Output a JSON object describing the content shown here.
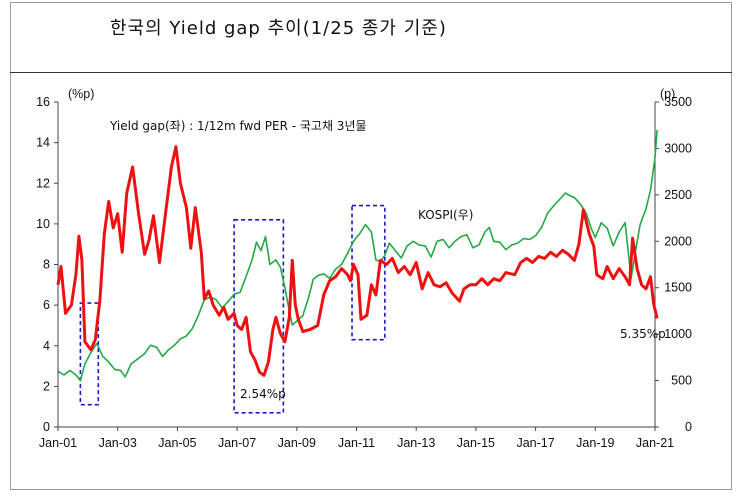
{
  "title": "한국의 Yield gap 추이(1/25 종가 기준)",
  "chart_data": {
    "type": "line",
    "left_axis_unit": "(%p)",
    "right_axis_unit": "(p)",
    "annotation_series_label": "Yield gap(좌) : 1/12m fwd PER - 국고채 3년물",
    "kospi_label": "KOSPI(우)",
    "label_low": "2.54%p",
    "label_last": "5.35%p",
    "ylim_left": [
      0,
      16
    ],
    "ylim_right": [
      0,
      3500
    ],
    "y_ticks_left": [
      "0",
      "2",
      "4",
      "6",
      "8",
      "10",
      "12",
      "14",
      "16"
    ],
    "y_ticks_right": [
      "0",
      "500",
      "1000",
      "1500",
      "2000",
      "2500",
      "3000",
      "3500"
    ],
    "x_ticks": [
      "Jan-01",
      "Jan-03",
      "Jan-05",
      "Jan-07",
      "Jan-09",
      "Jan-11",
      "Jan-13",
      "Jan-15",
      "Jan-17",
      "Jan-19",
      "Jan-21"
    ],
    "colors": {
      "yield_gap": "#ee1111",
      "kospi": "#22aa44",
      "box": "#1a1acc"
    },
    "series": [
      {
        "key": "yield_gap",
        "axis": "left",
        "points": [
          [
            2001.0,
            7.0
          ],
          [
            2001.1,
            7.9
          ],
          [
            2001.25,
            5.6
          ],
          [
            2001.45,
            6.0
          ],
          [
            2001.6,
            7.5
          ],
          [
            2001.7,
            9.4
          ],
          [
            2001.8,
            8.2
          ],
          [
            2001.9,
            4.2
          ],
          [
            2002.1,
            3.8
          ],
          [
            2002.25,
            4.3
          ],
          [
            2002.4,
            6.2
          ],
          [
            2002.55,
            9.5
          ],
          [
            2002.7,
            11.1
          ],
          [
            2002.85,
            9.8
          ],
          [
            2003.0,
            10.5
          ],
          [
            2003.15,
            8.6
          ],
          [
            2003.3,
            11.5
          ],
          [
            2003.5,
            12.8
          ],
          [
            2003.7,
            10.5
          ],
          [
            2003.9,
            8.5
          ],
          [
            2004.05,
            9.2
          ],
          [
            2004.2,
            10.4
          ],
          [
            2004.4,
            8.1
          ],
          [
            2004.6,
            10.5
          ],
          [
            2004.8,
            12.8
          ],
          [
            2004.95,
            13.8
          ],
          [
            2005.1,
            12.0
          ],
          [
            2005.3,
            10.8
          ],
          [
            2005.45,
            8.8
          ],
          [
            2005.6,
            10.8
          ],
          [
            2005.8,
            8.6
          ],
          [
            2005.9,
            6.3
          ],
          [
            2006.05,
            6.7
          ],
          [
            2006.2,
            6.0
          ],
          [
            2006.4,
            5.5
          ],
          [
            2006.55,
            5.9
          ],
          [
            2006.7,
            5.3
          ],
          [
            2006.9,
            5.6
          ],
          [
            2007.0,
            5.0
          ],
          [
            2007.15,
            4.8
          ],
          [
            2007.3,
            5.4
          ],
          [
            2007.45,
            3.7
          ],
          [
            2007.6,
            3.3
          ],
          [
            2007.75,
            2.7
          ],
          [
            2007.9,
            2.54
          ],
          [
            2008.05,
            3.2
          ],
          [
            2008.2,
            4.8
          ],
          [
            2008.3,
            5.4
          ],
          [
            2008.45,
            4.6
          ],
          [
            2008.6,
            4.2
          ],
          [
            2008.75,
            5.4
          ],
          [
            2008.85,
            8.2
          ],
          [
            2008.95,
            6.0
          ],
          [
            2009.05,
            5.3
          ],
          [
            2009.2,
            4.7
          ],
          [
            2009.45,
            4.8
          ],
          [
            2009.7,
            5.0
          ],
          [
            2009.9,
            6.5
          ],
          [
            2010.1,
            7.2
          ],
          [
            2010.3,
            7.4
          ],
          [
            2010.5,
            7.8
          ],
          [
            2010.7,
            7.5
          ],
          [
            2010.8,
            7.2
          ],
          [
            2010.9,
            8.0
          ],
          [
            2011.05,
            7.5
          ],
          [
            2011.15,
            5.3
          ],
          [
            2011.35,
            5.5
          ],
          [
            2011.5,
            7.0
          ],
          [
            2011.65,
            6.5
          ],
          [
            2011.8,
            8.2
          ],
          [
            2012.0,
            8.0
          ],
          [
            2012.2,
            8.3
          ],
          [
            2012.4,
            7.6
          ],
          [
            2012.6,
            7.9
          ],
          [
            2012.8,
            7.5
          ],
          [
            2013.0,
            8.1
          ],
          [
            2013.2,
            6.8
          ],
          [
            2013.4,
            7.6
          ],
          [
            2013.6,
            7.0
          ],
          [
            2013.8,
            6.9
          ],
          [
            2014.0,
            7.1
          ],
          [
            2014.2,
            6.6
          ],
          [
            2014.45,
            6.2
          ],
          [
            2014.6,
            6.8
          ],
          [
            2014.8,
            7.0
          ],
          [
            2015.0,
            7.0
          ],
          [
            2015.2,
            7.3
          ],
          [
            2015.4,
            7.0
          ],
          [
            2015.6,
            7.3
          ],
          [
            2015.8,
            7.2
          ],
          [
            2016.0,
            7.6
          ],
          [
            2016.3,
            7.5
          ],
          [
            2016.5,
            8.1
          ],
          [
            2016.7,
            8.3
          ],
          [
            2016.9,
            8.1
          ],
          [
            2017.1,
            8.4
          ],
          [
            2017.3,
            8.3
          ],
          [
            2017.5,
            8.6
          ],
          [
            2017.7,
            8.4
          ],
          [
            2017.9,
            8.7
          ],
          [
            2018.1,
            8.5
          ],
          [
            2018.3,
            8.2
          ],
          [
            2018.45,
            9.0
          ],
          [
            2018.6,
            10.7
          ],
          [
            2018.8,
            9.5
          ],
          [
            2018.95,
            8.9
          ],
          [
            2019.05,
            7.5
          ],
          [
            2019.25,
            7.3
          ],
          [
            2019.4,
            7.9
          ],
          [
            2019.6,
            7.3
          ],
          [
            2019.8,
            7.8
          ],
          [
            2020.0,
            7.4
          ],
          [
            2020.15,
            7.0
          ],
          [
            2020.25,
            9.3
          ],
          [
            2020.4,
            7.8
          ],
          [
            2020.55,
            7.0
          ],
          [
            2020.7,
            6.8
          ],
          [
            2020.85,
            7.4
          ],
          [
            2020.95,
            6.1
          ],
          [
            2021.07,
            5.35
          ]
        ]
      },
      {
        "key": "kospi",
        "axis": "right",
        "points": [
          [
            2001.0,
            600
          ],
          [
            2001.2,
            560
          ],
          [
            2001.4,
            610
          ],
          [
            2001.6,
            560
          ],
          [
            2001.75,
            500
          ],
          [
            2001.9,
            680
          ],
          [
            2002.1,
            800
          ],
          [
            2002.3,
            900
          ],
          [
            2002.5,
            760
          ],
          [
            2002.7,
            700
          ],
          [
            2002.9,
            620
          ],
          [
            2003.1,
            610
          ],
          [
            2003.25,
            540
          ],
          [
            2003.45,
            680
          ],
          [
            2003.7,
            740
          ],
          [
            2003.9,
            790
          ],
          [
            2004.1,
            880
          ],
          [
            2004.3,
            860
          ],
          [
            2004.5,
            760
          ],
          [
            2004.7,
            830
          ],
          [
            2004.9,
            880
          ],
          [
            2005.1,
            950
          ],
          [
            2005.3,
            980
          ],
          [
            2005.5,
            1060
          ],
          [
            2005.7,
            1200
          ],
          [
            2005.9,
            1370
          ],
          [
            2006.1,
            1400
          ],
          [
            2006.3,
            1370
          ],
          [
            2006.5,
            1280
          ],
          [
            2006.7,
            1350
          ],
          [
            2006.9,
            1430
          ],
          [
            2007.1,
            1450
          ],
          [
            2007.3,
            1620
          ],
          [
            2007.5,
            1800
          ],
          [
            2007.65,
            1990
          ],
          [
            2007.8,
            1900
          ],
          [
            2007.95,
            2050
          ],
          [
            2008.1,
            1750
          ],
          [
            2008.3,
            1800
          ],
          [
            2008.45,
            1720
          ],
          [
            2008.6,
            1500
          ],
          [
            2008.75,
            1250
          ],
          [
            2008.85,
            1100
          ],
          [
            2009.0,
            1140
          ],
          [
            2009.2,
            1200
          ],
          [
            2009.4,
            1400
          ],
          [
            2009.55,
            1590
          ],
          [
            2009.7,
            1630
          ],
          [
            2009.9,
            1650
          ],
          [
            2010.1,
            1600
          ],
          [
            2010.3,
            1700
          ],
          [
            2010.5,
            1750
          ],
          [
            2010.7,
            1870
          ],
          [
            2010.9,
            2000
          ],
          [
            2011.1,
            2080
          ],
          [
            2011.3,
            2180
          ],
          [
            2011.5,
            2100
          ],
          [
            2011.65,
            1800
          ],
          [
            2011.8,
            1780
          ],
          [
            2011.95,
            1850
          ],
          [
            2012.1,
            1980
          ],
          [
            2012.3,
            1900
          ],
          [
            2012.5,
            1820
          ],
          [
            2012.7,
            1950
          ],
          [
            2012.9,
            2000
          ],
          [
            2013.1,
            1960
          ],
          [
            2013.3,
            1950
          ],
          [
            2013.5,
            1830
          ],
          [
            2013.7,
            2000
          ],
          [
            2013.9,
            2020
          ],
          [
            2014.1,
            1930
          ],
          [
            2014.3,
            2000
          ],
          [
            2014.5,
            2050
          ],
          [
            2014.7,
            2070
          ],
          [
            2014.9,
            1930
          ],
          [
            2015.1,
            1960
          ],
          [
            2015.3,
            2100
          ],
          [
            2015.45,
            2150
          ],
          [
            2015.6,
            2000
          ],
          [
            2015.8,
            1990
          ],
          [
            2016.0,
            1910
          ],
          [
            2016.2,
            1960
          ],
          [
            2016.4,
            1980
          ],
          [
            2016.6,
            2030
          ],
          [
            2016.8,
            2020
          ],
          [
            2017.0,
            2060
          ],
          [
            2017.2,
            2150
          ],
          [
            2017.4,
            2300
          ],
          [
            2017.6,
            2380
          ],
          [
            2017.8,
            2450
          ],
          [
            2018.0,
            2520
          ],
          [
            2018.1,
            2500
          ],
          [
            2018.3,
            2470
          ],
          [
            2018.5,
            2400
          ],
          [
            2018.7,
            2300
          ],
          [
            2018.85,
            2150
          ],
          [
            2019.0,
            2040
          ],
          [
            2019.2,
            2200
          ],
          [
            2019.4,
            2140
          ],
          [
            2019.6,
            1950
          ],
          [
            2019.8,
            2100
          ],
          [
            2020.0,
            2200
          ],
          [
            2020.2,
            1600
          ],
          [
            2020.35,
            1900
          ],
          [
            2020.5,
            2180
          ],
          [
            2020.7,
            2350
          ],
          [
            2020.85,
            2550
          ],
          [
            2021.0,
            2900
          ],
          [
            2021.07,
            3200
          ]
        ]
      }
    ],
    "boxes": [
      {
        "x": [
          2001.75,
          2002.35
        ],
        "y": [
          1.1,
          6.1
        ]
      },
      {
        "x": [
          2006.9,
          2008.55
        ],
        "y": [
          0.7,
          10.2
        ]
      },
      {
        "x": [
          2010.85,
          2011.95
        ],
        "y": [
          4.3,
          10.9
        ]
      }
    ]
  }
}
